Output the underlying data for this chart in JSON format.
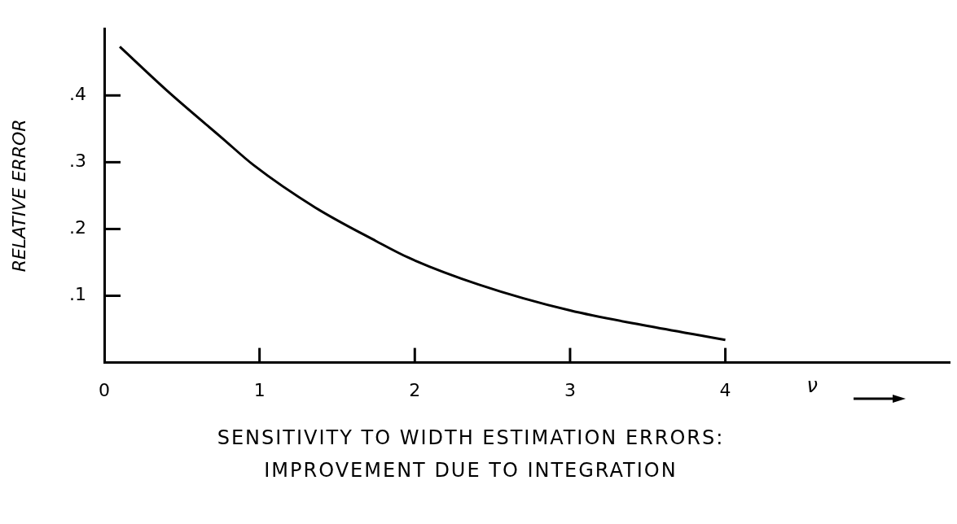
{
  "chart_data": {
    "type": "line",
    "title": "SENSITIVITY TO WIDTH ESTIMATION ERRORS: IMPROVEMENT DUE TO INTEGRATION",
    "xlabel": "ν",
    "ylabel": "RELATIVE ERROR",
    "series": [
      {
        "color": "#000000",
        "type": "line",
        "x": [
          0.1,
          0.41,
          0.76,
          0.96,
          1.36,
          1.75,
          1.96,
          2.41,
          3.0,
          3.52,
          4.0
        ],
        "values": [
          0.473,
          0.406,
          0.336,
          0.296,
          0.232,
          0.182,
          0.157,
          0.117,
          0.078,
          0.054,
          0.034
        ]
      }
    ],
    "xlim": [
      0,
      5.45
    ],
    "xticks": [
      0,
      1,
      2,
      3,
      4
    ],
    "ylim": [
      0,
      0.5
    ],
    "yticks": [
      {
        "value": 0.1,
        "label": ".1"
      },
      {
        "value": 0.2,
        "label": ".2"
      },
      {
        "value": 0.3,
        "label": ".3"
      },
      {
        "value": 0.4,
        "label": ".4"
      }
    ],
    "grid": false,
    "legend": false,
    "marker": "none",
    "line_style": "solid"
  }
}
